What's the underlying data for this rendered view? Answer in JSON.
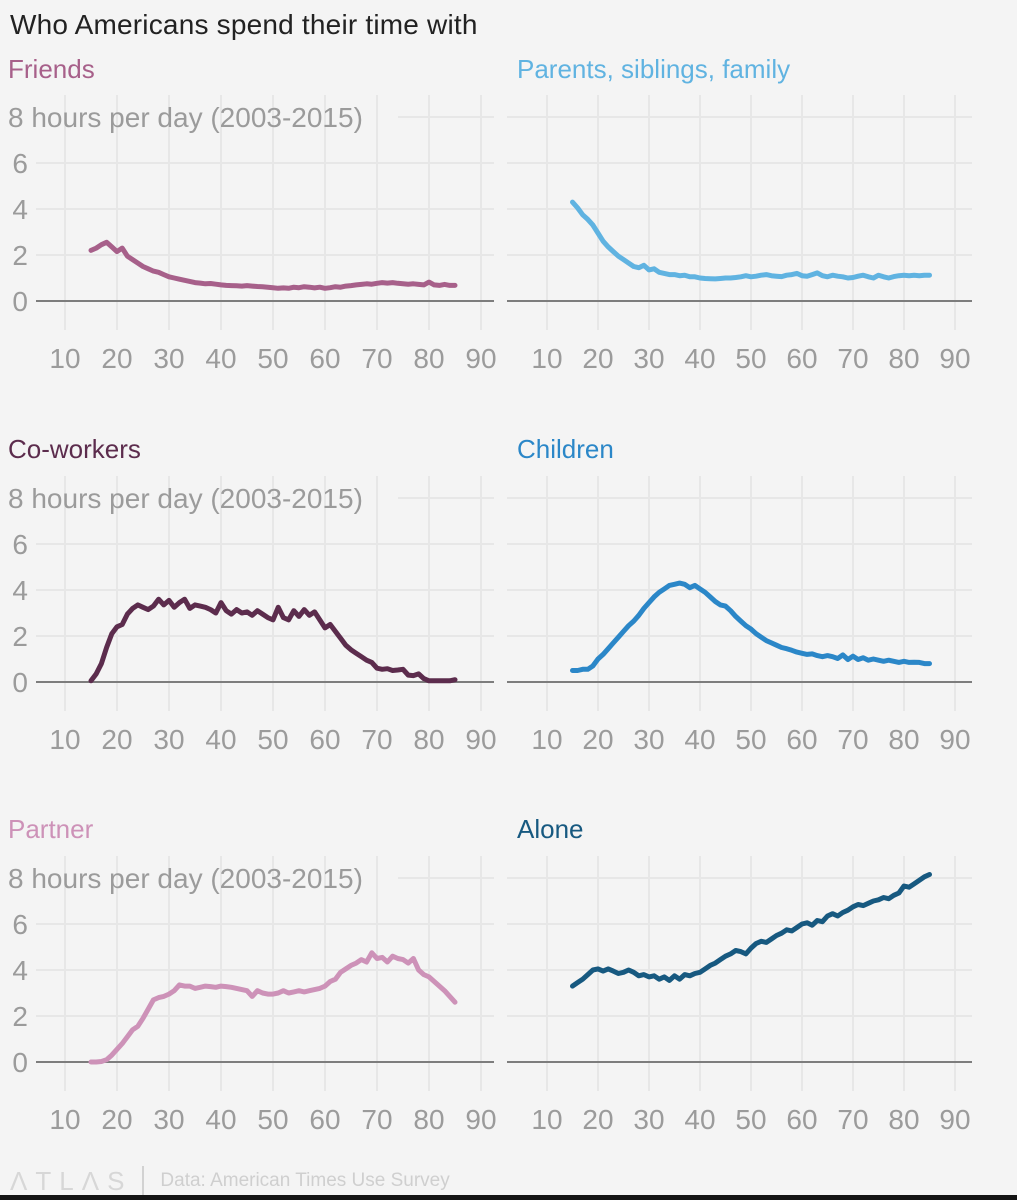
{
  "page": {
    "title": "Who Americans spend their time with",
    "background": "#f4f4f4",
    "bottom_bar_color": "#141414"
  },
  "footer": {
    "logo": "ΛTLΛS",
    "source": "Data: American Times Use Survey"
  },
  "axis": {
    "unit_label": "8 hours per day (2003-2015)",
    "y_ticks": [
      "6",
      "4",
      "2",
      "0"
    ],
    "y_tick_values": [
      6,
      4,
      2,
      0
    ],
    "x_ticks": [
      "10",
      "20",
      "30",
      "40",
      "50",
      "60",
      "70",
      "80",
      "90"
    ],
    "xlim": [
      10,
      90
    ],
    "ylim": [
      0,
      8
    ],
    "grid": true,
    "grid_color": "#e7e7e7",
    "baseline_color": "#7d7d7d",
    "tick_text_color": "#9b9b9b",
    "series_ages": [
      15,
      16,
      17,
      18,
      19,
      20,
      21,
      22,
      23,
      24,
      25,
      26,
      27,
      28,
      29,
      30,
      31,
      32,
      33,
      34,
      35,
      36,
      37,
      38,
      39,
      40,
      41,
      42,
      43,
      44,
      45,
      46,
      47,
      48,
      49,
      50,
      51,
      52,
      53,
      54,
      55,
      56,
      57,
      58,
      59,
      60,
      61,
      62,
      63,
      64,
      65,
      66,
      67,
      68,
      69,
      70,
      71,
      72,
      73,
      74,
      75,
      76,
      77,
      78,
      79,
      80,
      81,
      82,
      83,
      84,
      85
    ]
  },
  "chart_data": [
    {
      "type": "line",
      "title": "Friends",
      "color": "#a7608a",
      "unit_label_visible": true,
      "hours": [
        2.2,
        2.3,
        2.45,
        2.55,
        2.35,
        2.15,
        2.3,
        1.95,
        1.8,
        1.65,
        1.5,
        1.4,
        1.3,
        1.25,
        1.15,
        1.05,
        1.0,
        0.95,
        0.9,
        0.85,
        0.8,
        0.78,
        0.75,
        0.76,
        0.73,
        0.7,
        0.68,
        0.67,
        0.66,
        0.65,
        0.67,
        0.65,
        0.63,
        0.62,
        0.6,
        0.58,
        0.55,
        0.57,
        0.55,
        0.6,
        0.58,
        0.62,
        0.6,
        0.57,
        0.6,
        0.55,
        0.58,
        0.62,
        0.6,
        0.65,
        0.67,
        0.7,
        0.72,
        0.75,
        0.73,
        0.77,
        0.8,
        0.78,
        0.8,
        0.77,
        0.75,
        0.73,
        0.75,
        0.72,
        0.7,
        0.82,
        0.7,
        0.68,
        0.72,
        0.68,
        0.68
      ]
    },
    {
      "type": "line",
      "title": "Parents, siblings, family",
      "color": "#60b3e1",
      "unit_label_visible": false,
      "hours": [
        4.3,
        4.05,
        3.75,
        3.55,
        3.3,
        2.95,
        2.6,
        2.35,
        2.15,
        1.95,
        1.8,
        1.65,
        1.5,
        1.45,
        1.55,
        1.35,
        1.4,
        1.25,
        1.2,
        1.15,
        1.15,
        1.1,
        1.12,
        1.05,
        1.05,
        1.0,
        0.98,
        0.97,
        0.96,
        0.98,
        1.0,
        1.0,
        1.02,
        1.05,
        1.1,
        1.05,
        1.08,
        1.12,
        1.15,
        1.1,
        1.08,
        1.06,
        1.12,
        1.15,
        1.2,
        1.1,
        1.08,
        1.15,
        1.22,
        1.1,
        1.05,
        1.12,
        1.08,
        1.05,
        1.0,
        1.02,
        1.08,
        1.12,
        1.05,
        1.0,
        1.12,
        1.05,
        1.0,
        1.06,
        1.1,
        1.12,
        1.1,
        1.12,
        1.1,
        1.12,
        1.12
      ]
    },
    {
      "type": "line",
      "title": "Co-workers",
      "color": "#5c2c4d",
      "unit_label_visible": true,
      "hours": [
        0.05,
        0.35,
        0.8,
        1.5,
        2.1,
        2.4,
        2.5,
        2.95,
        3.2,
        3.35,
        3.25,
        3.15,
        3.3,
        3.6,
        3.35,
        3.55,
        3.25,
        3.45,
        3.6,
        3.2,
        3.35,
        3.3,
        3.25,
        3.15,
        3.0,
        3.45,
        3.1,
        2.95,
        3.15,
        3.0,
        3.05,
        2.9,
        3.1,
        2.95,
        2.8,
        2.7,
        3.25,
        2.8,
        2.7,
        3.1,
        2.85,
        3.15,
        2.9,
        3.05,
        2.7,
        2.35,
        2.5,
        2.2,
        1.9,
        1.6,
        1.4,
        1.25,
        1.1,
        0.95,
        0.85,
        0.6,
        0.55,
        0.58,
        0.5,
        0.52,
        0.55,
        0.3,
        0.28,
        0.35,
        0.15,
        0.05,
        0.05,
        0.05,
        0.05,
        0.05,
        0.1
      ]
    },
    {
      "type": "line",
      "title": "Children",
      "color": "#2b87c8",
      "unit_label_visible": false,
      "hours": [
        0.5,
        0.5,
        0.55,
        0.55,
        0.7,
        1.0,
        1.2,
        1.45,
        1.7,
        1.95,
        2.2,
        2.45,
        2.65,
        2.9,
        3.2,
        3.45,
        3.7,
        3.9,
        4.05,
        4.2,
        4.25,
        4.3,
        4.25,
        4.1,
        4.2,
        4.05,
        3.9,
        3.7,
        3.5,
        3.35,
        3.3,
        3.1,
        2.85,
        2.65,
        2.45,
        2.3,
        2.1,
        1.95,
        1.8,
        1.7,
        1.6,
        1.5,
        1.45,
        1.38,
        1.3,
        1.25,
        1.2,
        1.22,
        1.15,
        1.1,
        1.15,
        1.1,
        1.02,
        1.18,
        0.98,
        1.12,
        0.98,
        1.05,
        0.95,
        1.0,
        0.95,
        0.9,
        0.95,
        0.9,
        0.85,
        0.9,
        0.85,
        0.86,
        0.85,
        0.8,
        0.8
      ]
    },
    {
      "type": "line",
      "title": "Partner",
      "color": "#cd92b8",
      "unit_label_visible": true,
      "hours": [
        0.0,
        0.0,
        0.02,
        0.1,
        0.3,
        0.55,
        0.8,
        1.1,
        1.4,
        1.55,
        1.9,
        2.3,
        2.7,
        2.8,
        2.85,
        2.95,
        3.1,
        3.35,
        3.3,
        3.3,
        3.2,
        3.25,
        3.3,
        3.28,
        3.25,
        3.3,
        3.28,
        3.25,
        3.2,
        3.15,
        3.1,
        2.85,
        3.1,
        3.0,
        2.95,
        2.95,
        3.0,
        3.1,
        3.0,
        3.05,
        3.1,
        3.05,
        3.1,
        3.15,
        3.2,
        3.3,
        3.5,
        3.6,
        3.9,
        4.05,
        4.2,
        4.3,
        4.45,
        4.35,
        4.75,
        4.5,
        4.55,
        4.35,
        4.6,
        4.5,
        4.45,
        4.3,
        4.5,
        4.0,
        3.8,
        3.7,
        3.5,
        3.3,
        3.1,
        2.85,
        2.6
      ]
    },
    {
      "type": "line",
      "title": "Alone",
      "color": "#175980",
      "unit_label_visible": false,
      "hours": [
        3.3,
        3.45,
        3.6,
        3.8,
        4.0,
        4.05,
        3.95,
        4.05,
        3.95,
        3.85,
        3.9,
        4.0,
        3.9,
        3.75,
        3.8,
        3.7,
        3.75,
        3.6,
        3.7,
        3.55,
        3.75,
        3.6,
        3.8,
        3.75,
        3.85,
        3.9,
        4.05,
        4.2,
        4.3,
        4.45,
        4.6,
        4.7,
        4.85,
        4.8,
        4.7,
        4.95,
        5.15,
        5.25,
        5.2,
        5.35,
        5.5,
        5.6,
        5.75,
        5.7,
        5.85,
        6.0,
        6.05,
        5.95,
        6.15,
        6.1,
        6.35,
        6.45,
        6.35,
        6.5,
        6.6,
        6.75,
        6.85,
        6.8,
        6.9,
        7.0,
        7.05,
        7.15,
        7.1,
        7.25,
        7.35,
        7.65,
        7.6,
        7.75,
        7.9,
        8.05,
        8.15
      ]
    }
  ]
}
